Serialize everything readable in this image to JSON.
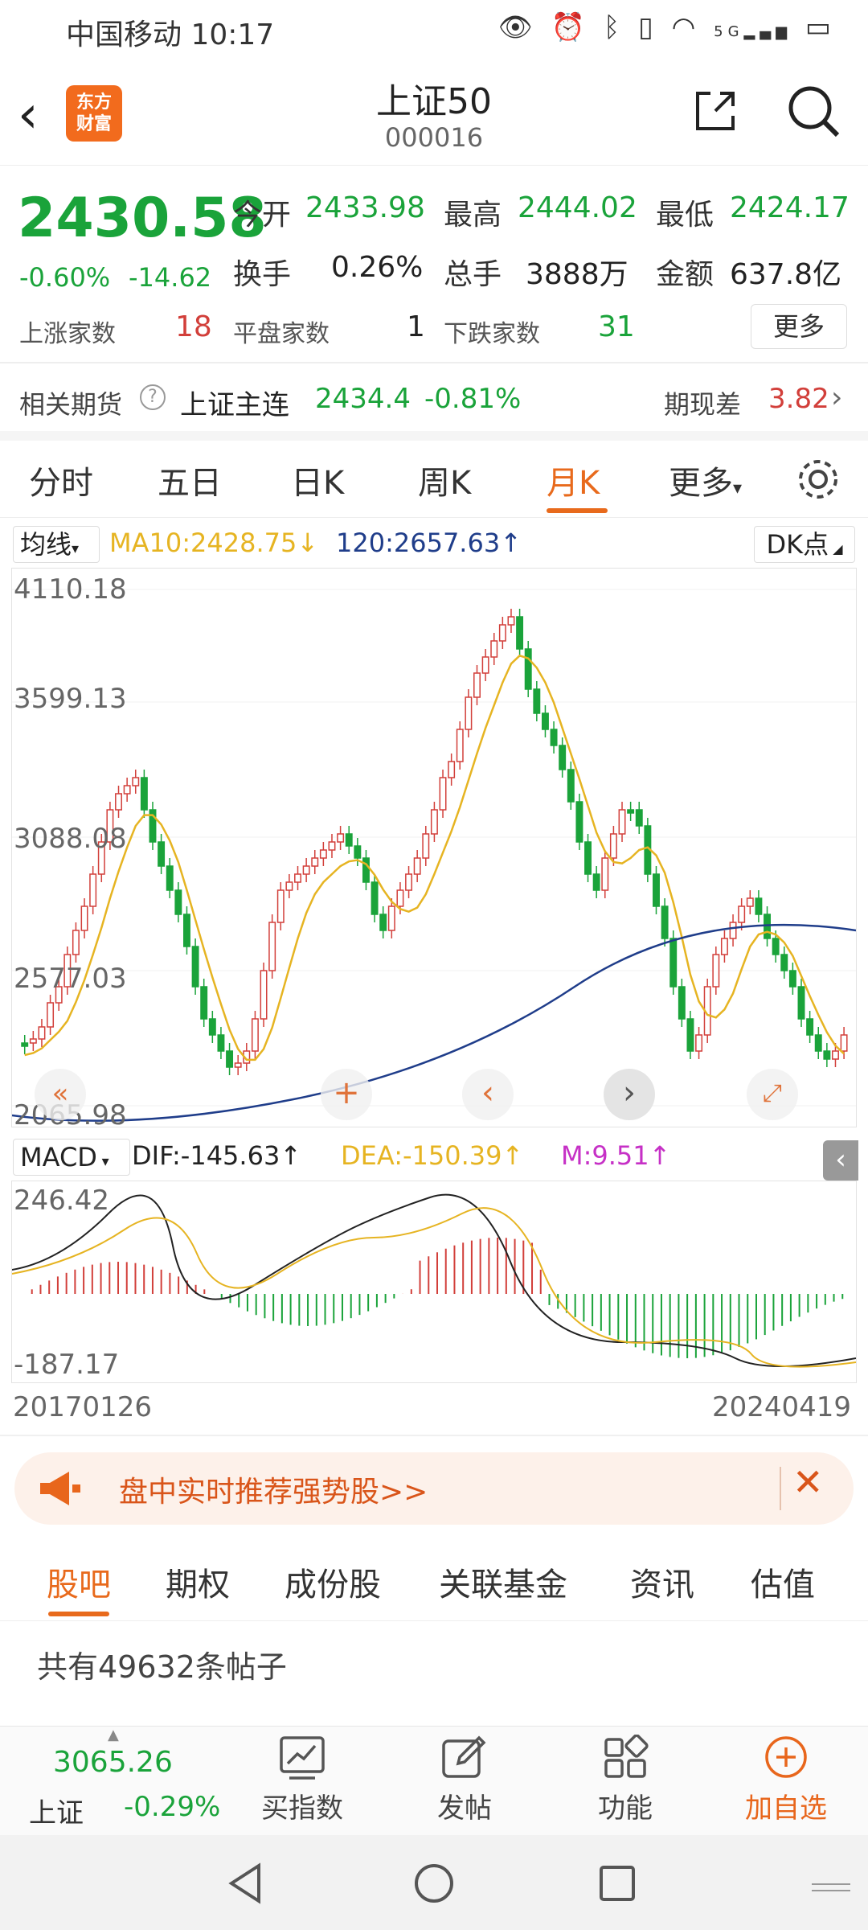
{
  "status_bar": {
    "carrier_time": "中国移动 10:17",
    "icons": [
      "eye-icon",
      "alarm-icon",
      "bluetooth-icon",
      "vibrate-icon",
      "wifi-icon",
      "signal-icon",
      "battery-icon"
    ],
    "network": "5G"
  },
  "header": {
    "title": "上证50",
    "code": "000016",
    "logo_line1": "东方",
    "logo_line2": "财富"
  },
  "quote": {
    "price": "2430.58",
    "change_pct": "-0.60%",
    "change": "-14.62",
    "open_label": "今开",
    "open": "2433.98",
    "high_label": "最高",
    "high": "2444.02",
    "low_label": "最低",
    "low": "2424.17",
    "turnover_label": "换手",
    "turnover": "0.26%",
    "volume_label": "总手",
    "volume": "3888万",
    "amount_label": "金额",
    "amount": "637.8亿",
    "up_label": "上涨家数",
    "up": "18",
    "flat_label": "平盘家数",
    "flat": "1",
    "down_label": "下跌家数",
    "down": "31",
    "more": "更多"
  },
  "futures": {
    "label": "相关期货",
    "name": "上证主连",
    "price": "2434.4",
    "pct": "-0.81%",
    "basis_label": "期现差",
    "basis": "3.82"
  },
  "tabs": [
    "分时",
    "五日",
    "日K",
    "周K",
    "月K",
    "更多"
  ],
  "active_tab": "月K",
  "ma": {
    "button": "均线",
    "ma10": "MA10:2428.75↓",
    "ma120": "120:2657.63↑",
    "dk": "DK点"
  },
  "chart_data": {
    "type": "candlestick",
    "y_ticks": [
      "4110.18",
      "3599.13",
      "3088.08",
      "2577.03",
      "2065.98"
    ],
    "x_start": "20170126",
    "x_end": "20240419",
    "ylim": [
      2065.98,
      4110.18
    ]
  },
  "macd": {
    "button": "MACD",
    "dif": "DIF:-145.63↑",
    "dea": "DEA:-150.39↑",
    "m": "M:9.51↑",
    "max": "246.42",
    "min": "-187.17"
  },
  "banner": {
    "text": "盘中实时推荐强势股>>"
  },
  "lower_tabs": [
    "股吧",
    "期权",
    "成份股",
    "关联基金",
    "资讯",
    "估值"
  ],
  "posts": "共有49632条帖子",
  "bottom": {
    "index_price": "3065.26",
    "index_name": "上证",
    "index_pct": "-0.29%",
    "buy": "买指数",
    "post": "发帖",
    "func": "功能",
    "add": "加自选"
  }
}
